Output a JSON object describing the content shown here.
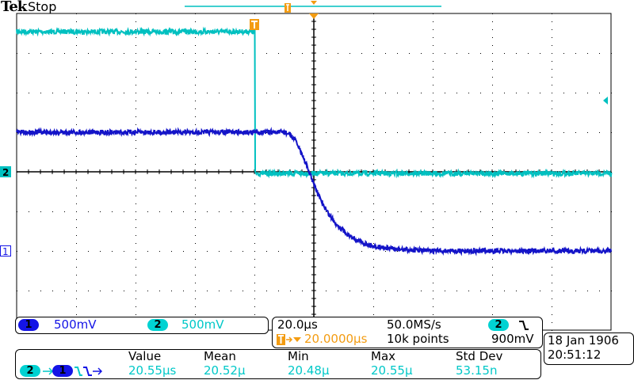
{
  "header": {
    "brand": "Tek",
    "status": "Stop"
  },
  "colors": {
    "ch1": "#1414c8",
    "ch2": "#00c0c0",
    "trigger": "#f39c12",
    "grid": "#000000"
  },
  "channels": [
    {
      "number": "1",
      "scale": "500mV"
    },
    {
      "number": "2",
      "scale": "500mV"
    }
  ],
  "timebase": {
    "scale": "20.0µs",
    "sample_rate": "50.0MS/s",
    "trigger_source": "2",
    "trigger_slope_icon": "falling-edge-icon",
    "trigger_position": "20.0000µs",
    "record_length": "10k points",
    "trigger_level": "900mV"
  },
  "datetime": {
    "date": "18 Jan  1906",
    "time": "20:51:12"
  },
  "measurement": {
    "source_from": "2",
    "source_to": "1",
    "type_icon": "delay-falling-to-falling-icon",
    "headers": [
      "Value",
      "Mean",
      "Min",
      "Max",
      "Std Dev"
    ],
    "values": [
      "20.55µs",
      "20.52µ",
      "20.48µ",
      "20.55µ",
      "53.15n"
    ]
  },
  "chart_data": {
    "type": "line",
    "title": "",
    "xlabel": "",
    "ylabel": "",
    "x_units": "µs",
    "y_units": "V",
    "xlim": [
      -80,
      120
    ],
    "divisions": {
      "horizontal": 10,
      "vertical": 8
    },
    "grid": true,
    "trigger_time": 0,
    "trigger_level_v": 0.9,
    "series": [
      {
        "channel": "1",
        "volts_per_div": 0.5,
        "offset_div": -2,
        "x": [
          -80,
          10,
          12,
          14,
          16,
          18,
          20,
          22,
          25,
          28,
          32,
          36,
          40,
          48,
          60,
          120
        ],
        "y": [
          1.5,
          1.5,
          1.47,
          1.38,
          1.22,
          1.03,
          0.84,
          0.66,
          0.46,
          0.32,
          0.19,
          0.11,
          0.06,
          0.02,
          0,
          0
        ]
      },
      {
        "channel": "2",
        "volts_per_div": 0.5,
        "offset_div": 0,
        "x": [
          -80,
          0,
          0.01,
          120
        ],
        "y": [
          1.77,
          1.77,
          -0.02,
          -0.02
        ]
      }
    ]
  }
}
